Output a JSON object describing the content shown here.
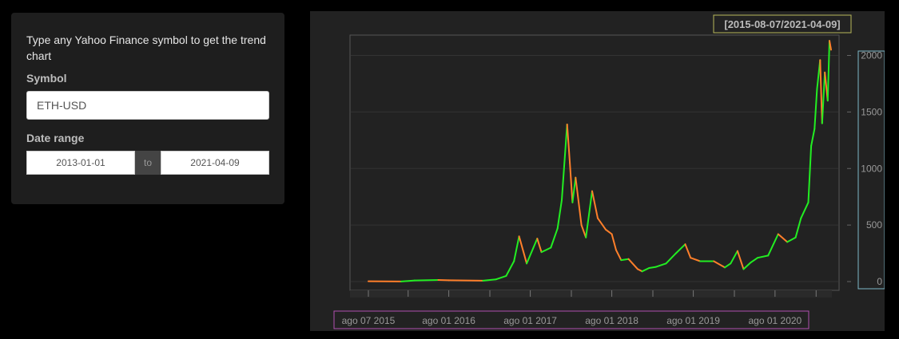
{
  "panel": {
    "intro": "Type any Yahoo Finance symbol to get the trend chart",
    "symbol_label": "Symbol",
    "symbol_value": "ETH-USD",
    "date_label": "Date range",
    "date_start": "2013-01-01",
    "date_sep": "to",
    "date_end": "2021-04-09"
  },
  "chart_data": {
    "type": "line",
    "title": "",
    "xlabel": "",
    "ylabel": "",
    "range_label": "[2015-08-07/2021-04-09]",
    "y_ticks": [
      "0",
      "500",
      "1000",
      "1500",
      "2000"
    ],
    "x_ticks": [
      "ago 07 2015",
      "ago 01 2016",
      "ago 01 2017",
      "ago 01 2018",
      "ago 01 2019",
      "ago 01 2020"
    ],
    "ylim": [
      0,
      2180
    ],
    "xlim": [
      "2015-08-07",
      "2021-04-09"
    ],
    "grid": true,
    "colors": {
      "up": "#22ee22",
      "down": "#ff7f2a",
      "background": "#222222",
      "grid": "#333333"
    },
    "series": [
      {
        "values": [
          [
            "2015-08-07",
            3
          ],
          [
            "2016-01-01",
            1
          ],
          [
            "2016-03-01",
            10
          ],
          [
            "2016-06-15",
            14
          ],
          [
            "2016-08-01",
            11
          ],
          [
            "2017-01-01",
            8
          ],
          [
            "2017-03-01",
            20
          ],
          [
            "2017-04-15",
            50
          ],
          [
            "2017-05-20",
            180
          ],
          [
            "2017-06-12",
            400
          ],
          [
            "2017-07-16",
            160
          ],
          [
            "2017-08-15",
            300
          ],
          [
            "2017-09-01",
            380
          ],
          [
            "2017-09-20",
            260
          ],
          [
            "2017-11-01",
            300
          ],
          [
            "2017-12-01",
            470
          ],
          [
            "2017-12-20",
            720
          ],
          [
            "2018-01-13",
            1390
          ],
          [
            "2018-01-25",
            1050
          ],
          [
            "2018-02-06",
            700
          ],
          [
            "2018-02-20",
            920
          ],
          [
            "2018-03-18",
            500
          ],
          [
            "2018-04-07",
            390
          ],
          [
            "2018-05-05",
            800
          ],
          [
            "2018-05-30",
            560
          ],
          [
            "2018-07-05",
            460
          ],
          [
            "2018-08-01",
            420
          ],
          [
            "2018-08-20",
            280
          ],
          [
            "2018-09-12",
            190
          ],
          [
            "2018-10-15",
            200
          ],
          [
            "2018-11-25",
            110
          ],
          [
            "2018-12-15",
            90
          ],
          [
            "2019-01-15",
            120
          ],
          [
            "2019-02-15",
            130
          ],
          [
            "2019-04-01",
            160
          ],
          [
            "2019-05-15",
            250
          ],
          [
            "2019-06-26",
            330
          ],
          [
            "2019-07-20",
            210
          ],
          [
            "2019-09-01",
            180
          ],
          [
            "2019-11-01",
            180
          ],
          [
            "2019-12-20",
            125
          ],
          [
            "2020-01-15",
            160
          ],
          [
            "2020-02-15",
            270
          ],
          [
            "2020-03-13",
            110
          ],
          [
            "2020-04-15",
            170
          ],
          [
            "2020-05-15",
            210
          ],
          [
            "2020-07-01",
            230
          ],
          [
            "2020-08-15",
            420
          ],
          [
            "2020-09-25",
            350
          ],
          [
            "2020-11-01",
            390
          ],
          [
            "2020-11-25",
            560
          ],
          [
            "2020-12-28",
            700
          ],
          [
            "2021-01-10",
            1200
          ],
          [
            "2021-01-25",
            1350
          ],
          [
            "2021-02-05",
            1700
          ],
          [
            "2021-02-19",
            1960
          ],
          [
            "2021-02-28",
            1400
          ],
          [
            "2021-03-12",
            1850
          ],
          [
            "2021-03-25",
            1600
          ],
          [
            "2021-04-02",
            2130
          ],
          [
            "2021-04-09",
            2050
          ]
        ]
      }
    ]
  }
}
